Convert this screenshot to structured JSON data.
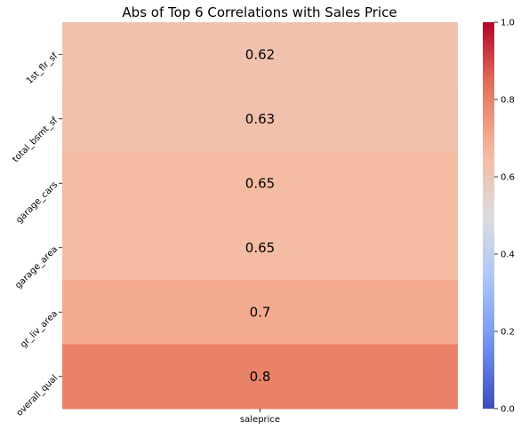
{
  "chart_data": {
    "type": "heatmap",
    "title": "Abs of Top 6 Correlations with Sales Price",
    "x_categories": [
      "saleprice"
    ],
    "y_categories": [
      "1st_flr_sf",
      "total_bsmt_sf",
      "garage_cars",
      "garage_area",
      "gr_liv_area",
      "overall_qual"
    ],
    "values": [
      0.62,
      0.63,
      0.65,
      0.65,
      0.7,
      0.8
    ],
    "annotations": [
      "0.62",
      "0.63",
      "0.65",
      "0.65",
      "0.7",
      "0.8"
    ],
    "colormap": "coolwarm",
    "colorbar": {
      "range": [
        0.0,
        1.0
      ],
      "ticks": [
        0.0,
        0.2,
        0.4,
        0.6,
        0.8,
        1.0
      ],
      "tick_labels": [
        "0.0",
        "0.2",
        "0.4",
        "0.6",
        "0.8",
        "1.0"
      ]
    },
    "grid": false
  },
  "colors": {
    "coolwarm_stops": [
      "#3b4cc0",
      "#6f92f3",
      "#aac7fd",
      "#dddcdc",
      "#f7b89c",
      "#e7745b",
      "#b40426"
    ]
  }
}
